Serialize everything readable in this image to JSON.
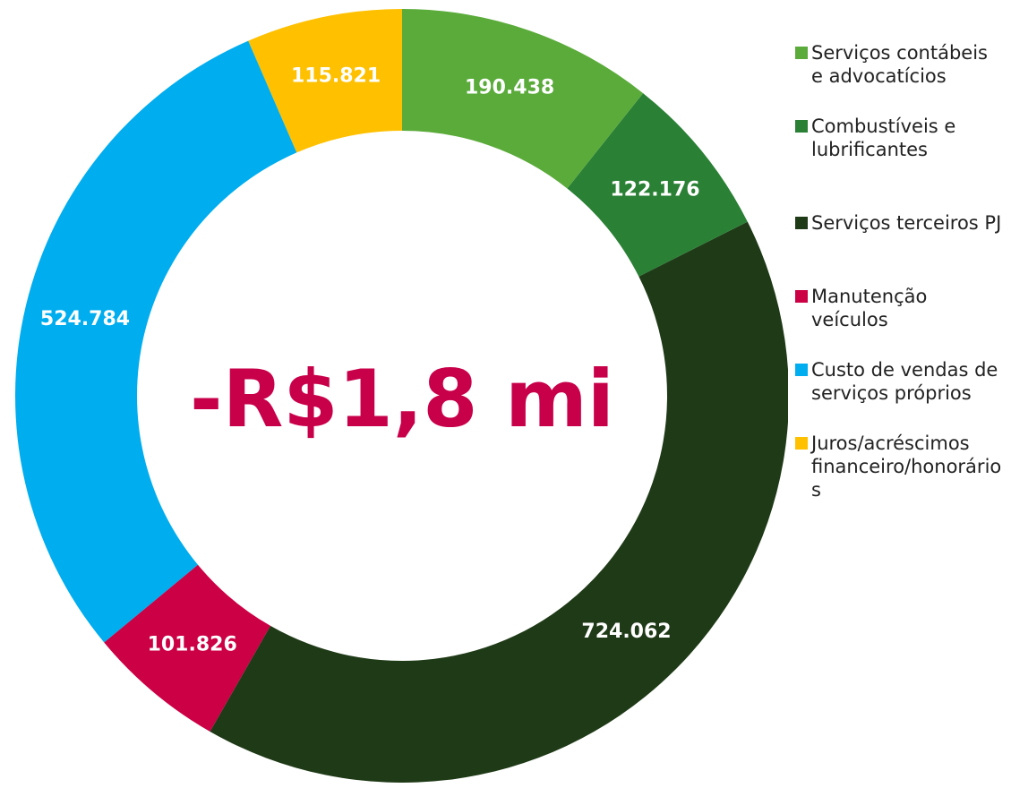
{
  "chart_data": {
    "type": "donut",
    "annotation": "-R$1,8 mi",
    "categories": [
      "Serviços contábeis e advocatícios",
      "Combustíveis e lubrificantes",
      "Serviços terceiros PJ",
      "Manutenção veículos",
      "Custo de vendas de serviços próprios",
      "Juros/acréscimos financeiro/honorários"
    ],
    "values": [
      190438,
      122176,
      724062,
      101826,
      524784,
      115821
    ],
    "value_labels": [
      "190.438",
      "122.176",
      "724.062",
      "101.826",
      "524.784",
      "115.821"
    ],
    "colors": [
      "#5aab3a",
      "#2a8035",
      "#1f3a17",
      "#cc0044",
      "#00adef",
      "#ffc000"
    ],
    "legend": "right"
  }
}
